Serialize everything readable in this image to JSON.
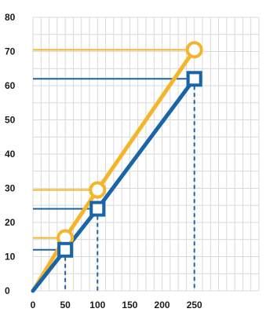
{
  "chart_data": {
    "type": "line",
    "xlim": [
      0,
      350
    ],
    "ylim": [
      0,
      80
    ],
    "x_tick_labels": [
      "0",
      "50",
      "100",
      "150",
      "200",
      "250"
    ],
    "y_tick_labels": [
      "0",
      "10",
      "20",
      "30",
      "40",
      "50",
      "60",
      "70",
      "80"
    ],
    "x_ticks": [
      0,
      50,
      100,
      150,
      200,
      250
    ],
    "y_ticks": [
      0,
      10,
      20,
      30,
      40,
      50,
      60,
      70,
      80
    ],
    "grid": true,
    "series": [
      {
        "color": "#f5b52a",
        "marker": "circle",
        "x": [
          0,
          50,
          100,
          250
        ],
        "y": [
          0,
          15.5,
          29.5,
          70.5
        ],
        "reference_lines": true
      },
      {
        "color": "#1a64a8",
        "marker": "square",
        "x": [
          0,
          50,
          100,
          250
        ],
        "y": [
          0,
          12,
          24,
          62
        ],
        "reference_lines": true,
        "drop_lines": true
      }
    ]
  }
}
